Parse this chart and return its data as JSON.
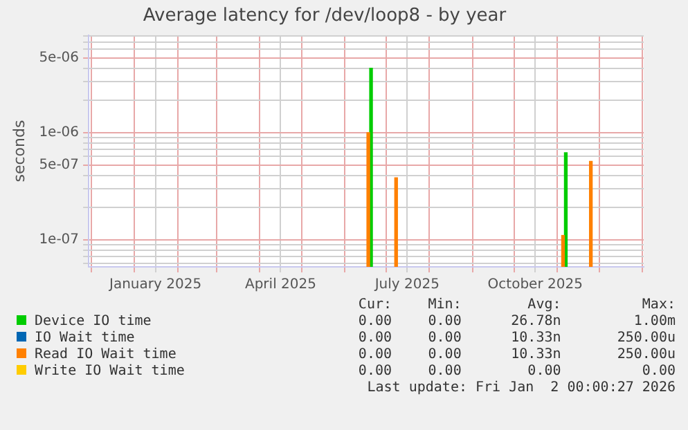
{
  "chart_data": {
    "type": "bar",
    "title": "Average latency for /dev/loop8 - by year",
    "ylabel": "seconds",
    "log": "y",
    "grid": true,
    "legend": "bottom",
    "xlim": [
      "2024-11-29",
      "2026-01-02"
    ],
    "xticks": [
      {
        "value": "2024-12-01",
        "label": null
      },
      {
        "value": "2025-01-01",
        "label": null
      },
      {
        "value": "2025-01-16",
        "label": "January 2025"
      },
      {
        "value": "2025-02-01",
        "label": null
      },
      {
        "value": "2025-03-01",
        "label": null
      },
      {
        "value": "2025-04-01",
        "label": null
      },
      {
        "value": "2025-04-16",
        "label": "April 2025"
      },
      {
        "value": "2025-05-01",
        "label": null
      },
      {
        "value": "2025-06-01",
        "label": null
      },
      {
        "value": "2025-07-01",
        "label": null
      },
      {
        "value": "2025-07-16",
        "label": "July 2025"
      },
      {
        "value": "2025-08-01",
        "label": null
      },
      {
        "value": "2025-09-01",
        "label": null
      },
      {
        "value": "2025-10-01",
        "label": null
      },
      {
        "value": "2025-10-16",
        "label": "October 2025"
      },
      {
        "value": "2025-11-01",
        "label": null
      },
      {
        "value": "2025-12-01",
        "label": null
      },
      {
        "value": "2026-01-01",
        "label": null
      }
    ],
    "ylim": [
      5.6e-08,
      8.1e-06
    ],
    "yticks": [
      {
        "value": 6e-08,
        "label": null
      },
      {
        "value": 7e-08,
        "label": null
      },
      {
        "value": 8e-08,
        "label": null
      },
      {
        "value": 9e-08,
        "label": null
      },
      {
        "value": 1e-07,
        "label": "1e-07"
      },
      {
        "value": 2e-07,
        "label": null
      },
      {
        "value": 3e-07,
        "label": null
      },
      {
        "value": 4e-07,
        "label": null
      },
      {
        "value": 5e-07,
        "label": "5e-07"
      },
      {
        "value": 6e-07,
        "label": null
      },
      {
        "value": 7e-07,
        "label": null
      },
      {
        "value": 8e-07,
        "label": null
      },
      {
        "value": 9e-07,
        "label": null
      },
      {
        "value": 1e-06,
        "label": "1e-06"
      },
      {
        "value": 2e-06,
        "label": null
      },
      {
        "value": 3e-06,
        "label": null
      },
      {
        "value": 4e-06,
        "label": null
      },
      {
        "value": 5e-06,
        "label": "5e-06"
      },
      {
        "value": 6e-06,
        "label": null
      },
      {
        "value": 7e-06,
        "label": null
      },
      {
        "value": 8e-06,
        "label": null
      }
    ],
    "series": [
      {
        "name": "Device IO time",
        "color": "#00cc00",
        "x": [
          "2025-06-19",
          "2025-11-06"
        ],
        "values": [
          4e-06,
          6.5e-07
        ]
      },
      {
        "name": "IO Wait time",
        "color": "#0066b3",
        "type": "line"
      },
      {
        "name": "Read IO Wait time",
        "color": "#ff8000",
        "x": [
          "2025-06-19",
          "2025-07-09",
          "2025-11-06",
          "2025-11-26"
        ],
        "values": [
          1e-06,
          3.8e-07,
          1.1e-07,
          5.4e-07
        ]
      },
      {
        "name": "Write IO Wait time",
        "color": "#ffcc00",
        "type": "line"
      }
    ],
    "annotations": [
      "Cur:",
      "Min:",
      "Avg:",
      "Max:",
      "0.00",
      "0.00",
      "26.78n",
      "1.00m",
      "0.00",
      "0.00",
      "10.33n",
      "250.00u",
      "0.00",
      "0.00",
      "10.33n",
      "250.00u",
      "0.00",
      "0.00",
      "0.00",
      "0.00",
      "Last update: Fri Jan  2 00:00:27 2026"
    ]
  }
}
